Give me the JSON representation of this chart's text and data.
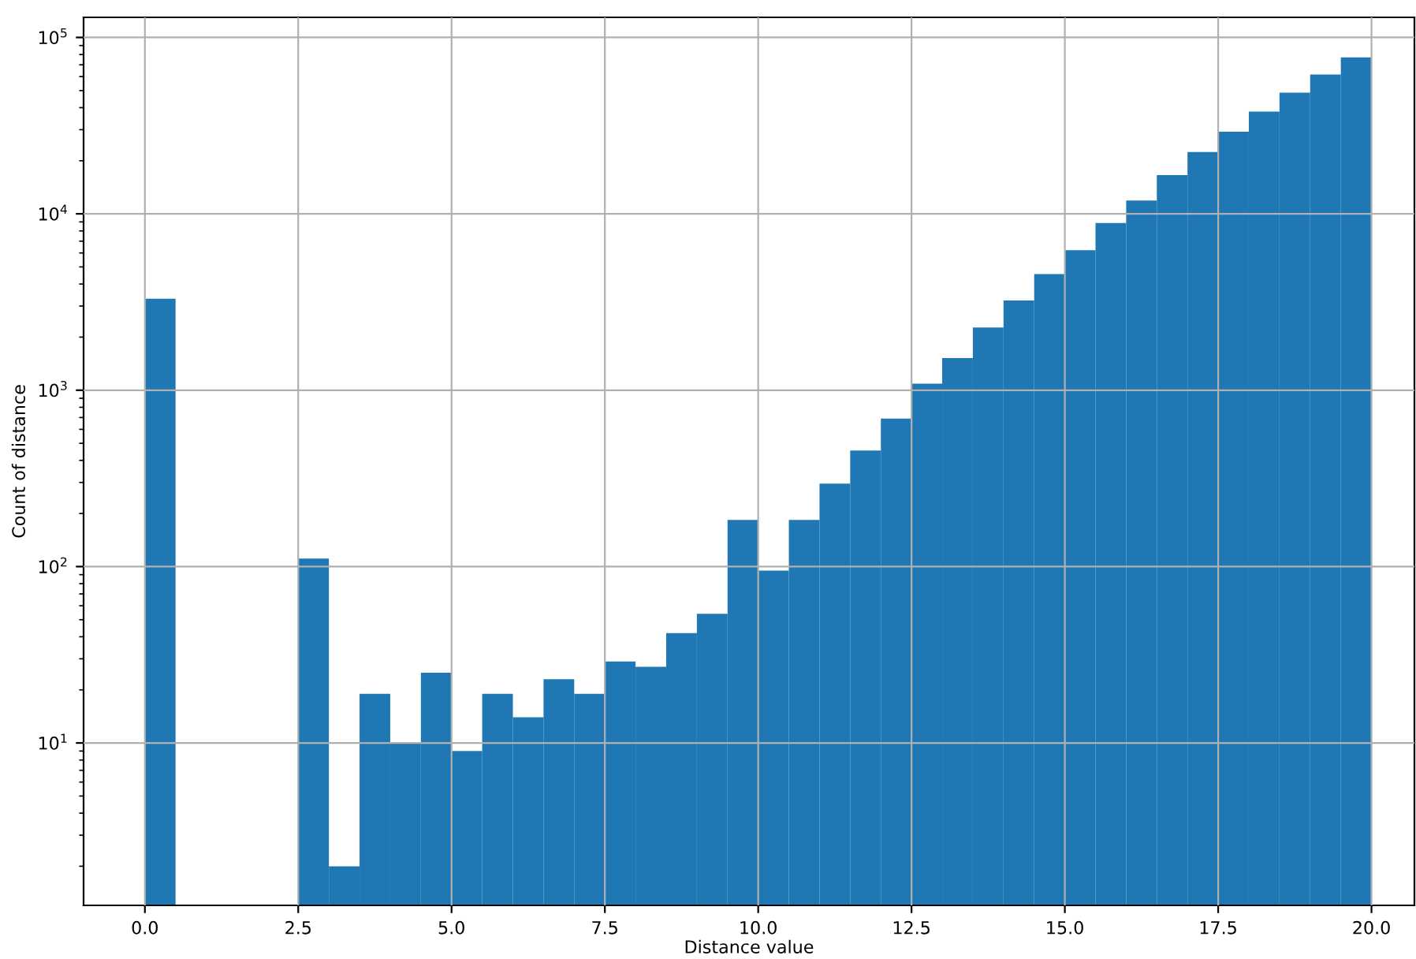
{
  "chart_data": {
    "type": "histogram",
    "xlabel": "Distance value",
    "ylabel": "Count of distance",
    "bins": [
      0.0,
      0.5,
      1.0,
      1.5,
      2.0,
      2.5,
      3.0,
      3.5,
      4.0,
      4.5,
      5.0,
      5.5,
      6.0,
      6.5,
      7.0,
      7.5,
      8.0,
      8.5,
      9.0,
      9.5,
      10.0,
      10.5,
      11.0,
      11.5,
      12.0,
      12.5,
      13.0,
      13.5,
      14.0,
      14.5,
      15.0,
      15.5,
      16.0,
      16.5,
      17.0,
      17.5,
      18.0,
      18.5,
      19.0,
      19.5,
      20.0
    ],
    "values": [
      3300,
      null,
      null,
      null,
      null,
      111,
      2,
      19,
      10,
      25,
      9,
      19,
      14,
      23,
      19,
      29,
      27,
      42,
      54,
      184,
      95,
      184,
      295,
      455,
      690,
      1090,
      1520,
      2270,
      3230,
      4550,
      6220,
      8870,
      11900,
      16600,
      22400,
      29200,
      38000,
      48600,
      61600,
      77100
    ],
    "color": "#1f77b4",
    "log": "y",
    "grid": true,
    "xlim": [
      -1.0,
      20.7
    ],
    "xticks": [
      {
        "value": 0,
        "label": "0.0"
      },
      {
        "value": 2.5,
        "label": "2.5"
      },
      {
        "value": 5,
        "label": "5.0"
      },
      {
        "value": 7.5,
        "label": "7.5"
      },
      {
        "value": 10,
        "label": "10.0"
      },
      {
        "value": 12.5,
        "label": "12.5"
      },
      {
        "value": 15,
        "label": "15.0"
      },
      {
        "value": 17.5,
        "label": "17.5"
      },
      {
        "value": 20,
        "label": "20.0"
      }
    ],
    "ylim": [
      1.2,
      130000
    ],
    "yticks": [
      {
        "value": 10,
        "label": "10$^{1}$"
      },
      {
        "value": 100,
        "label": "10$^{2}$"
      },
      {
        "value": 1000,
        "label": "10$^{3}$"
      },
      {
        "value": 10000,
        "label": "10$^{4}$"
      },
      {
        "value": 100000,
        "label": "10$^{5}$"
      }
    ]
  }
}
